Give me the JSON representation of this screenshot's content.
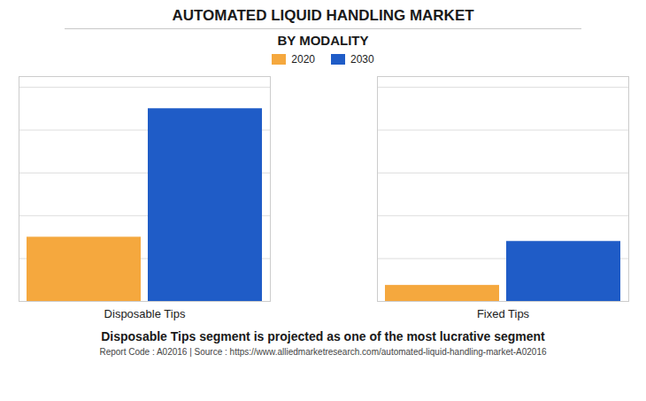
{
  "chart_data": {
    "type": "bar",
    "title": "AUTOMATED LIQUID HANDLING MARKET",
    "subtitle": "BY MODALITY",
    "categories": [
      "Disposable Tips",
      "Fixed Tips"
    ],
    "series": [
      {
        "name": "2020",
        "color": "#F5A83E",
        "values": [
          3.0,
          0.75
        ]
      },
      {
        "name": "2030",
        "color": "#1F5CC7",
        "values": [
          9.0,
          2.8
        ]
      }
    ],
    "ylim": [
      0,
      10.5
    ],
    "yticks": [
      0,
      2,
      4,
      6,
      8,
      10
    ],
    "grid": true,
    "legend": "top",
    "tick_labels": "x",
    "annotations": [
      "Disposable Tips segment is projected as one of the most lucrative segment",
      "Report Code : A02016  |  Source : https://www.alliedmarketresearch.com/automated-liquid-handling-market-A02016"
    ]
  }
}
